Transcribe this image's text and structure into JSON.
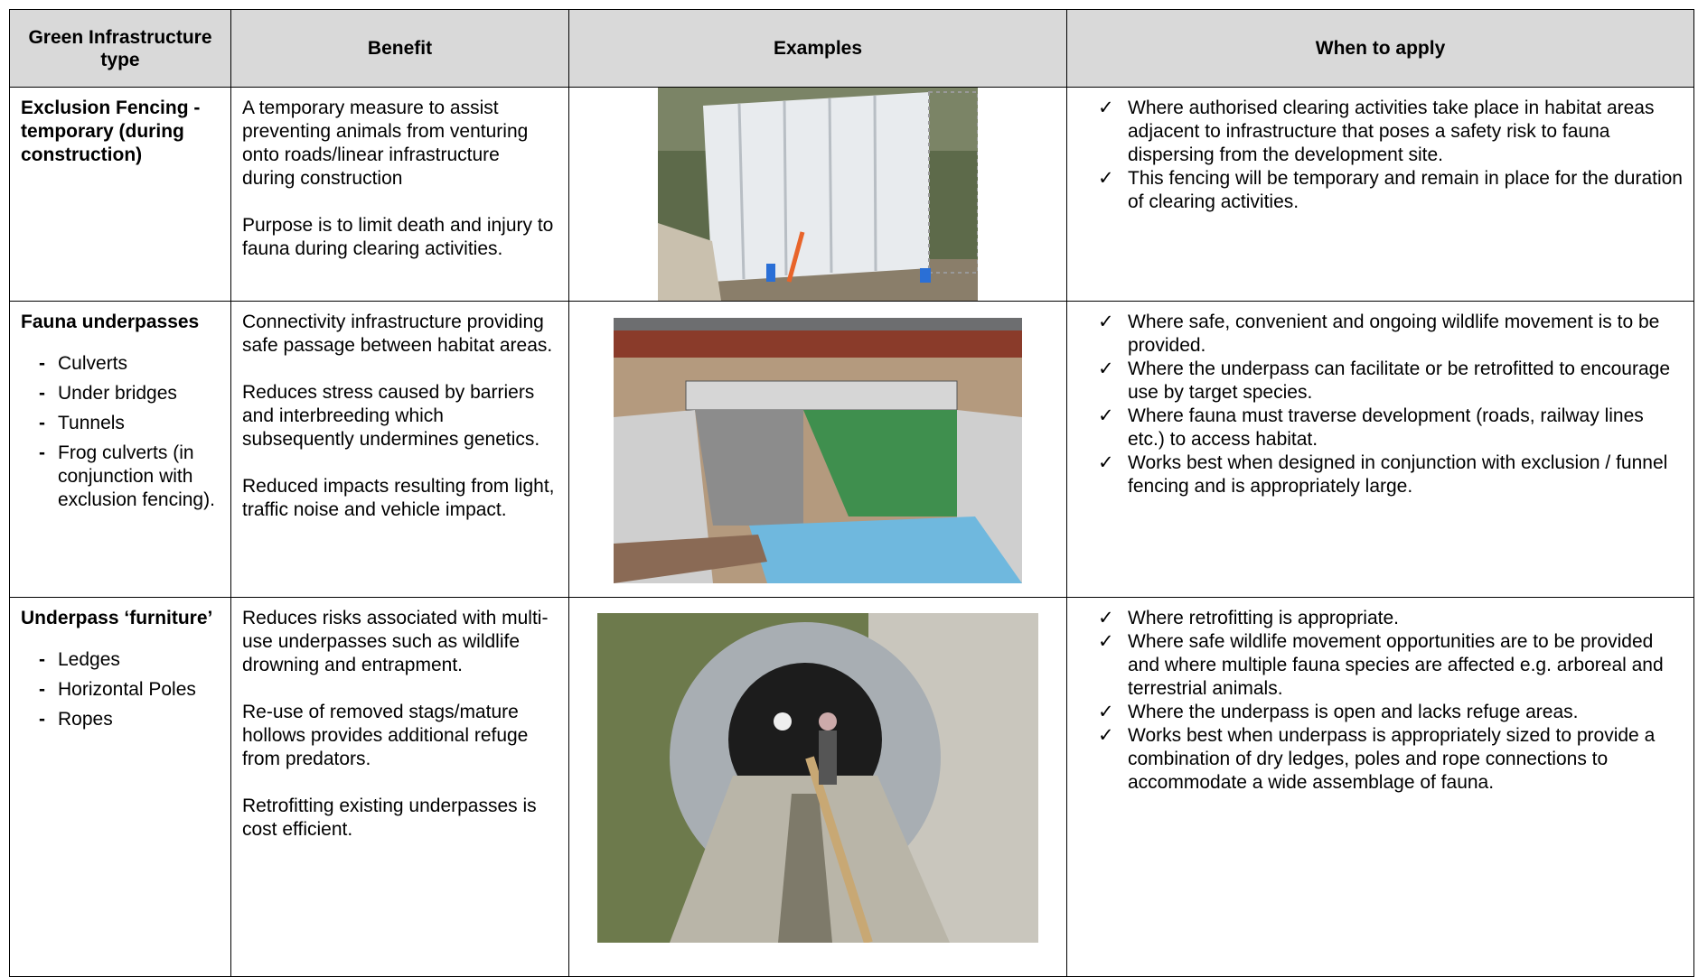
{
  "header": {
    "columns": [
      "Green Infrastructure type",
      "Benefit",
      "Examples",
      "When to apply"
    ]
  },
  "rows": [
    {
      "type": "Exclusion Fencing - temporary (during construction)",
      "type_items": [],
      "benefit": [
        "A temporary measure to assist preventing animals from venturing onto roads/linear infrastructure during construction",
        "Purpose is to limit death and injury to fauna during clearing activities."
      ],
      "when": [
        "Where authorised clearing activities take place in habitat areas adjacent to infrastructure that poses a safety risk to fauna dispersing from the development site.",
        "This fencing will be temporary and remain in place for the duration of clearing activities."
      ]
    },
    {
      "type": "Fauna underpasses",
      "type_items": [
        "Culverts",
        "Under bridges",
        "Tunnels",
        "Frog culverts (in conjunction with exclusion fencing)."
      ],
      "benefit": [
        "Connectivity infrastructure providing safe passage between habitat areas.",
        "Reduces stress caused by barriers and interbreeding which subsequently undermines genetics.",
        "Reduced impacts resulting from light, traffic noise and vehicle impact."
      ],
      "when": [
        "Where safe, convenient and ongoing wildlife movement is to be provided.",
        "Where the underpass can facilitate or be retrofitted to encourage use by target species.",
        "Where fauna must traverse development (roads, railway lines etc.) to access habitat.",
        "Works best when designed in conjunction with exclusion / funnel fencing and is appropriately large."
      ]
    },
    {
      "type": "Underpass ‘furniture’",
      "type_items": [
        "Ledges",
        "Horizontal Poles",
        "Ropes"
      ],
      "benefit": [
        "Reduces risks associated with multi-use underpasses such as wildlife drowning and entrapment.",
        "Re-use of removed stags/mature hollows provides additional refuge from predators.",
        "Retrofitting existing underpasses is cost efficient."
      ],
      "when": [
        "Where retrofitting is appropriate.",
        "Where safe wildlife movement opportunities are to be provided and where multiple fauna species are affected e.g. arboreal and terrestrial animals.",
        "Where the underpass is open and lacks refuge areas.",
        "Works best when underpass is appropriately sized to provide a combination of dry ledges, poles and rope connections to accommodate a wide assemblage of fauna."
      ]
    }
  ]
}
